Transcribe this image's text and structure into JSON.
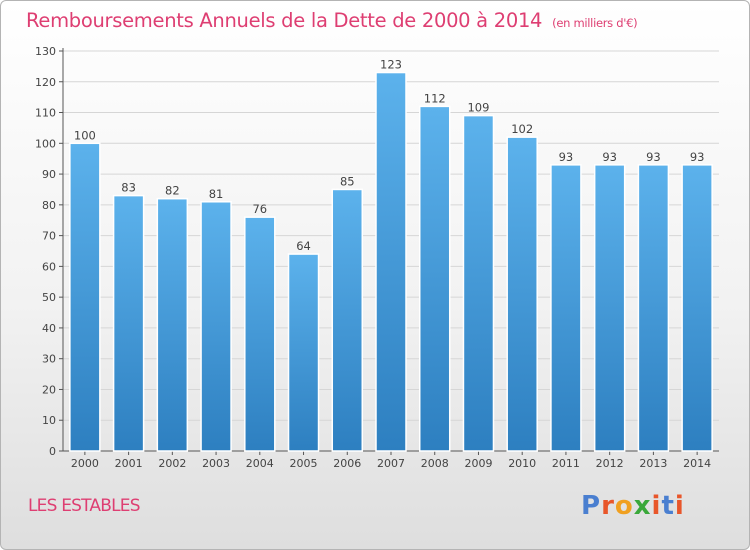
{
  "header": {
    "title": "Remboursements Annuels de la Dette de 2000 à 2014",
    "unit": "(en milliers d'€)"
  },
  "footer": {
    "commune": "LES ESTABLES",
    "logo": "Proxiti"
  },
  "colors": {
    "title": "#de3e72",
    "bar_top": "#5cb2ec",
    "bar_bottom": "#2d7fc0"
  },
  "chart_data": {
    "type": "bar",
    "title": "Remboursements Annuels de la Dette de 2000 à 2014",
    "xlabel": "",
    "ylabel": "",
    "categories": [
      "2000",
      "2001",
      "2002",
      "2003",
      "2004",
      "2005",
      "2006",
      "2007",
      "2008",
      "2009",
      "2010",
      "2011",
      "2012",
      "2013",
      "2014"
    ],
    "values": [
      100,
      83,
      82,
      81,
      76,
      64,
      85,
      123,
      112,
      109,
      102,
      93,
      93,
      93,
      93
    ],
    "ylim": [
      0,
      130
    ],
    "yticks": [
      0,
      10,
      20,
      30,
      40,
      50,
      60,
      70,
      80,
      90,
      100,
      110,
      120,
      130
    ],
    "grid": true,
    "data_labels": true
  }
}
